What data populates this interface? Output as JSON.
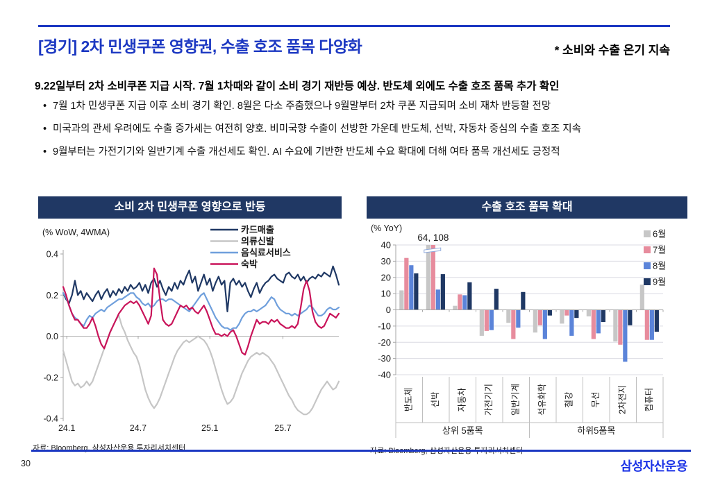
{
  "page": {
    "number": "30",
    "logo": "삼성자산운용"
  },
  "header": {
    "title": "[경기] 2차 민생쿠폰 영향권, 수출 호조 품목 다양화",
    "subtitle": "* 소비와 수출 온기 지속"
  },
  "body": {
    "heading": "9.22일부터 2차 소비쿠폰 지급 시작. 7월 1차때와 같이 소비 경기 재반등 예상. 반도체 외에도 수출 호조 품목 추가 확인",
    "bullets": [
      "7월 1차 민생쿠폰 지급 이후 소비 경기 확인. 8월은 다소 주춤했으나 9월말부터 2차 쿠폰 지급되며 소비 재차 반등할 전망",
      "미국과의 관세 우려에도 수출 증가세는 여전히 양호. 비미국향 수출이 선방한 가운데 반도체, 선박, 자동차 중심의 수출 호조 지속",
      "9월부터는 가전기기와 일반기계 수출 개선세도 확인. AI 수요에 기반한 반도체 수요 확대에 더해 여타 품목 개선세도 긍정적"
    ]
  },
  "colors": {
    "accent_blue": "#1c38c2",
    "title_bar_navy": "#203864",
    "logo_blue": "#1b32e6"
  },
  "chart_data": [
    {
      "type": "line",
      "title": "소비 2차 민생쿠폰 영향으로 반등",
      "unit_label": "(% WoW, 4WMA)",
      "source": "자료: Bloomberg, 삼성자산운용 투자리서치센터",
      "ylim": [
        -0.4,
        0.4
      ],
      "yticks": {
        "values": [
          0.4,
          0.2,
          0,
          -0.2,
          -0.4
        ],
        "labels": [
          "0.4",
          "0.2",
          "0.0",
          "-0.2",
          "-0.4"
        ]
      },
      "xticks": {
        "labels": [
          "24.1",
          "24.7",
          "25.1",
          "25.7"
        ],
        "fracs": [
          0.013,
          0.272,
          0.532,
          0.797
        ]
      },
      "grid": "zero-line-only",
      "legend_position": "top-right",
      "series": [
        {
          "name": "카드매출",
          "color": "#1f3864",
          "values": [
            0.21,
            0.18,
            0.16,
            0.2,
            0.27,
            0.2,
            0.22,
            0.18,
            0.21,
            0.19,
            0.17,
            0.2,
            0.22,
            0.18,
            0.21,
            0.23,
            0.19,
            0.22,
            0.2,
            0.23,
            0.21,
            0.24,
            0.22,
            0.25,
            0.23,
            0.24,
            0.26,
            0.22,
            0.25,
            0.21,
            0.26,
            0.28,
            0.24,
            0.27,
            0.23,
            0.2,
            0.24,
            0.22,
            0.26,
            0.23,
            0.27,
            0.25,
            0.29,
            0.32,
            0.26,
            0.29,
            0.22,
            0.26,
            0.3,
            0.25,
            0.28,
            0.22,
            0.26,
            0.29,
            0.25,
            0.27,
            0.12,
            0.26,
            0.28,
            0.25,
            0.27,
            0.24,
            0.26,
            0.22,
            0.19,
            0.23,
            0.26,
            0.21,
            0.24,
            0.26,
            0.27,
            0.29,
            0.3,
            0.28,
            0.27,
            0.26,
            0.3,
            0.31,
            0.29,
            0.28,
            0.3,
            0.27,
            0.29,
            0.26,
            0.28,
            0.29,
            0.28,
            0.3,
            0.29,
            0.31,
            0.3,
            0.29,
            0.34,
            0.3,
            0.25
          ]
        },
        {
          "name": "의류신발",
          "color": "#c6c6c6",
          "values": [
            -0.07,
            -0.12,
            -0.17,
            -0.22,
            -0.24,
            -0.23,
            -0.25,
            -0.24,
            -0.22,
            -0.24,
            -0.22,
            -0.18,
            -0.14,
            -0.1,
            -0.06,
            -0.02,
            0.02,
            0.05,
            0.08,
            0.1,
            0.05,
            0.02,
            -0.02,
            -0.05,
            -0.08,
            -0.1,
            -0.14,
            -0.2,
            -0.26,
            -0.3,
            -0.33,
            -0.35,
            -0.33,
            -0.3,
            -0.26,
            -0.22,
            -0.18,
            -0.14,
            -0.1,
            -0.07,
            -0.05,
            -0.03,
            -0.02,
            -0.03,
            -0.02,
            -0.01,
            0.0,
            -0.01,
            -0.02,
            -0.04,
            -0.07,
            -0.11,
            -0.16,
            -0.21,
            -0.26,
            -0.3,
            -0.33,
            -0.32,
            -0.3,
            -0.26,
            -0.22,
            -0.18,
            -0.15,
            -0.12,
            -0.1,
            -0.09,
            -0.08,
            -0.09,
            -0.08,
            -0.09,
            -0.1,
            -0.12,
            -0.14,
            -0.17,
            -0.2,
            -0.23,
            -0.26,
            -0.29,
            -0.31,
            -0.34,
            -0.36,
            -0.37,
            -0.38,
            -0.38,
            -0.37,
            -0.35,
            -0.32,
            -0.29,
            -0.26,
            -0.24,
            -0.22,
            -0.24,
            -0.26,
            -0.25,
            -0.22
          ]
        },
        {
          "name": "음식료서비스",
          "color": "#6f9fdc",
          "values": [
            0.21,
            0.19,
            0.15,
            0.11,
            0.09,
            0.08,
            0.06,
            0.05,
            0.08,
            0.1,
            0.09,
            0.11,
            0.12,
            0.13,
            0.12,
            0.14,
            0.15,
            0.16,
            0.17,
            0.18,
            0.18,
            0.19,
            0.2,
            0.21,
            0.21,
            0.19,
            0.18,
            0.16,
            0.15,
            0.16,
            0.14,
            0.15,
            0.17,
            0.18,
            0.18,
            0.17,
            0.18,
            0.18,
            0.17,
            0.16,
            0.15,
            0.14,
            0.13,
            0.12,
            0.14,
            0.16,
            0.18,
            0.2,
            0.21,
            0.18,
            0.15,
            0.12,
            0.09,
            0.07,
            0.05,
            0.04,
            0.04,
            0.03,
            0.04,
            0.04,
            0.06,
            0.09,
            0.11,
            0.12,
            0.12,
            0.13,
            0.12,
            0.13,
            0.14,
            0.15,
            0.17,
            0.19,
            0.18,
            0.15,
            0.13,
            0.12,
            0.11,
            0.11,
            0.1,
            0.11,
            0.1,
            0.11,
            0.12,
            0.13,
            0.15,
            0.14,
            0.12,
            0.1,
            0.1,
            0.11,
            0.13,
            0.14,
            0.13,
            0.13,
            0.14
          ]
        },
        {
          "name": "숙박",
          "color": "#c9145a",
          "values": [
            0.24,
            0.2,
            0.15,
            0.11,
            0.08,
            0.08,
            0.06,
            0.04,
            0.04,
            0.06,
            0.09,
            0.05,
            0.0,
            -0.04,
            -0.06,
            -0.02,
            0.02,
            0.05,
            0.08,
            0.11,
            0.13,
            0.15,
            0.16,
            0.17,
            0.16,
            0.17,
            0.15,
            0.12,
            0.09,
            0.06,
            0.1,
            0.33,
            0.3,
            0.18,
            0.08,
            0.06,
            0.05,
            0.06,
            0.09,
            0.12,
            0.15,
            0.14,
            0.15,
            0.13,
            0.14,
            0.12,
            0.11,
            0.13,
            0.15,
            0.12,
            0.08,
            0.04,
            0.01,
            0.01,
            0.0,
            0.01,
            0.0,
            0.02,
            0.03,
            0.0,
            -0.04,
            -0.08,
            -0.09,
            -0.05,
            0.0,
            0.04,
            0.08,
            0.06,
            0.07,
            0.07,
            0.06,
            0.08,
            0.07,
            0.08,
            0.06,
            0.05,
            0.04,
            0.04,
            0.05,
            0.04,
            0.06,
            0.14,
            0.23,
            0.27,
            0.22,
            0.12,
            0.07,
            0.05,
            0.04,
            0.05,
            0.08,
            0.11,
            0.1,
            0.09,
            0.11
          ]
        }
      ]
    },
    {
      "type": "bar",
      "title": "수출 호조 품목 확대",
      "unit_label": "(% YoY)",
      "source": "자료: Bloomberg, 삼성자산운용 투자리서치센터",
      "ylim": [
        -40,
        40
      ],
      "yticks": {
        "values": [
          40,
          30,
          20,
          10,
          0,
          -10,
          -20,
          -30,
          -40
        ],
        "labels": [
          "40",
          "30",
          "20",
          "10",
          "0",
          "-10",
          "-20",
          "-30",
          "-40"
        ]
      },
      "categories": [
        "반도체",
        "선박",
        "자동차",
        "가전기기",
        "일반기계",
        "석유화학",
        "철강",
        "무선",
        "2차전지",
        "컴퓨터"
      ],
      "category_groups": [
        {
          "label": "상위 5품목",
          "from": 0,
          "to": 4
        },
        {
          "label": "하위5품목",
          "from": 5,
          "to": 9
        }
      ],
      "grid": "horizontal",
      "legend_position": "top-right",
      "series": [
        {
          "name": "6월",
          "color": "#c7c7c7",
          "values": [
            12,
            64,
            2.5,
            -16,
            -8,
            -14,
            -8.5,
            -4,
            -19.5,
            15.5
          ]
        },
        {
          "name": "7월",
          "color": "#e78c9d",
          "values": [
            32,
            108,
            9.5,
            -13,
            -18,
            -9.5,
            -3.5,
            -18,
            -21.5,
            -18.5
          ]
        },
        {
          "name": "8월",
          "color": "#5b84d9",
          "values": [
            27.5,
            12.5,
            9,
            -12.5,
            -11,
            -18,
            -16,
            -14.5,
            -32,
            -18.5
          ]
        },
        {
          "name": "9월",
          "color": "#1f3864",
          "values": [
            22.5,
            22,
            17,
            13,
            11,
            -3.5,
            -5,
            -7.5,
            -9.5,
            -13.5
          ]
        }
      ],
      "annotation": {
        "text": "64, 108",
        "target": "선박"
      },
      "axis_break": {
        "category": "선박",
        "series": [
          "6월",
          "7월"
        ],
        "display_cap": 40,
        "break_value": 36.5
      }
    }
  ]
}
